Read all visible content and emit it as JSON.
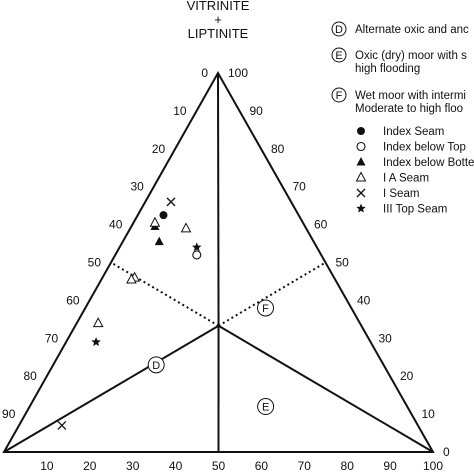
{
  "chart_data": {
    "type": "scatter",
    "subtype": "ternary",
    "title_lines": [
      "VITRINITE",
      "+",
      "LIPTINITE"
    ],
    "left_axis_ticks": [
      "0",
      "10",
      "20",
      "30",
      "40",
      "50",
      "60",
      "70",
      "80",
      "90"
    ],
    "right_axis_ticks": [
      "100",
      "90",
      "80",
      "70",
      "60",
      "50",
      "40",
      "30",
      "20",
      "10",
      "0"
    ],
    "bottom_axis_ticks": [
      "10",
      "20",
      "30",
      "40",
      "50",
      "60",
      "70",
      "80",
      "90",
      "100"
    ],
    "zones": [
      "D",
      "E",
      "F"
    ],
    "legend_zones": [
      {
        "label": "D",
        "lines": [
          "Alternate oxic and anc"
        ]
      },
      {
        "label": "E",
        "lines": [
          "Oxic (dry) moor with s",
          "high flooding"
        ]
      },
      {
        "label": "F",
        "lines": [
          "Wet moor with intermi",
          "Moderate to high floo"
        ]
      }
    ],
    "series": [
      {
        "name": "Index Seam",
        "marker": "filled-circle",
        "points": [
          [
            31.5,
            62.5
          ]
        ]
      },
      {
        "name": "Index below Top",
        "marker": "open-circle",
        "points": [
          [
            29,
            52
          ]
        ]
      },
      {
        "name": "Index below Botte",
        "marker": "filled-triangle",
        "points": [
          [
            35,
            59.5
          ],
          [
            36,
            55.5
          ]
        ]
      },
      {
        "name": "I A Seam",
        "marker": "open-triangle",
        "points": [
          [
            34.5,
            60.5
          ],
          [
            28,
            59
          ],
          [
            46.5,
            46
          ],
          [
            47.5,
            45.5
          ],
          [
            61,
            34
          ]
        ]
      },
      {
        "name": "I Seam",
        "marker": "cross",
        "points": [
          [
            28,
            66
          ],
          [
            83,
            7
          ]
        ]
      },
      {
        "name": "III Top Seam",
        "marker": "star",
        "points": [
          [
            28,
            54
          ],
          [
            64,
            29
          ]
        ]
      }
    ]
  }
}
